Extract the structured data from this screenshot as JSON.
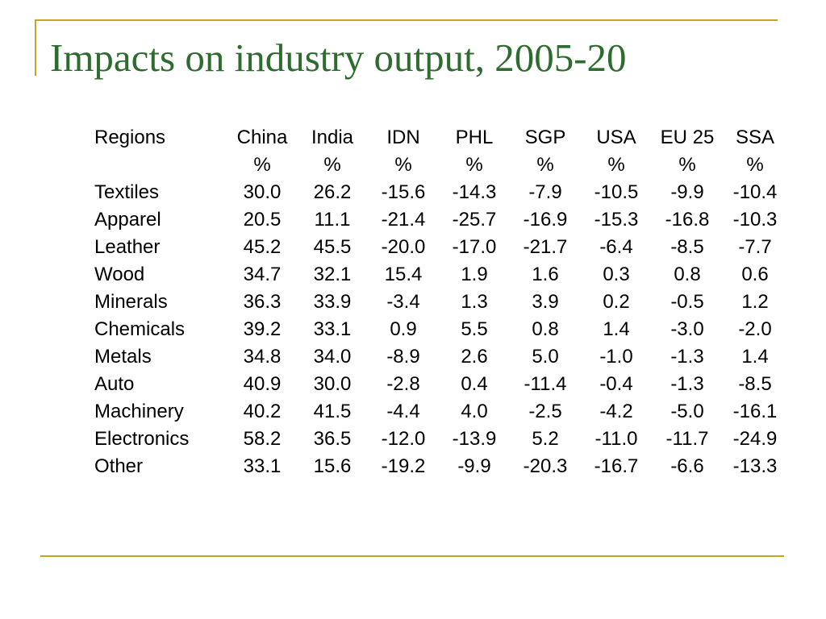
{
  "title": "Impacts on industry output, 2005-20",
  "table": {
    "corner_label": "Regions",
    "columns": [
      {
        "name": "China",
        "unit": "%"
      },
      {
        "name": "India",
        "unit": "%"
      },
      {
        "name": "IDN",
        "unit": "%"
      },
      {
        "name": "PHL",
        "unit": "%"
      },
      {
        "name": "SGP",
        "unit": "%"
      },
      {
        "name": "USA",
        "unit": "%"
      },
      {
        "name": "EU 25",
        "unit": "%"
      },
      {
        "name": "SSA",
        "unit": "%"
      }
    ],
    "rows": [
      {
        "label": "Textiles",
        "values": [
          "30.0",
          "26.2",
          "-15.6",
          "-14.3",
          "-7.9",
          "-10.5",
          "-9.9",
          "-10.4"
        ]
      },
      {
        "label": "Apparel",
        "values": [
          "20.5",
          "11.1",
          "-21.4",
          "-25.7",
          "-16.9",
          "-15.3",
          "-16.8",
          "-10.3"
        ]
      },
      {
        "label": "Leather",
        "values": [
          "45.2",
          "45.5",
          "-20.0",
          "-17.0",
          "-21.7",
          "-6.4",
          "-8.5",
          "-7.7"
        ]
      },
      {
        "label": "Wood",
        "values": [
          "34.7",
          "32.1",
          "15.4",
          "1.9",
          "1.6",
          "0.3",
          "0.8",
          "0.6"
        ]
      },
      {
        "label": "Minerals",
        "values": [
          "36.3",
          "33.9",
          "-3.4",
          "1.3",
          "3.9",
          "0.2",
          "-0.5",
          "1.2"
        ]
      },
      {
        "label": "Chemicals",
        "values": [
          "39.2",
          "33.1",
          "0.9",
          "5.5",
          "0.8",
          "1.4",
          "-3.0",
          "-2.0"
        ]
      },
      {
        "label": "Metals",
        "values": [
          "34.8",
          "34.0",
          "-8.9",
          "2.6",
          "5.0",
          "-1.0",
          "-1.3",
          "1.4"
        ]
      },
      {
        "label": "Auto",
        "values": [
          "40.9",
          "30.0",
          "-2.8",
          "0.4",
          "-11.4",
          "-0.4",
          "-1.3",
          "-8.5"
        ]
      },
      {
        "label": "Machinery",
        "values": [
          "40.2",
          "41.5",
          "-4.4",
          "4.0",
          "-2.5",
          "-4.2",
          "-5.0",
          "-16.1"
        ]
      },
      {
        "label": "Electronics",
        "values": [
          "58.2",
          "36.5",
          "-12.0",
          "-13.9",
          "5.2",
          "-11.0",
          "-11.7",
          "-24.9"
        ]
      },
      {
        "label": "Other",
        "values": [
          "33.1",
          "15.6",
          "-19.2",
          "-9.9",
          "-20.3",
          "-16.7",
          "-6.6",
          "-13.3"
        ]
      }
    ]
  },
  "colors": {
    "title": "#2e6b2e",
    "rule": "#c9a227",
    "text": "#000000"
  }
}
